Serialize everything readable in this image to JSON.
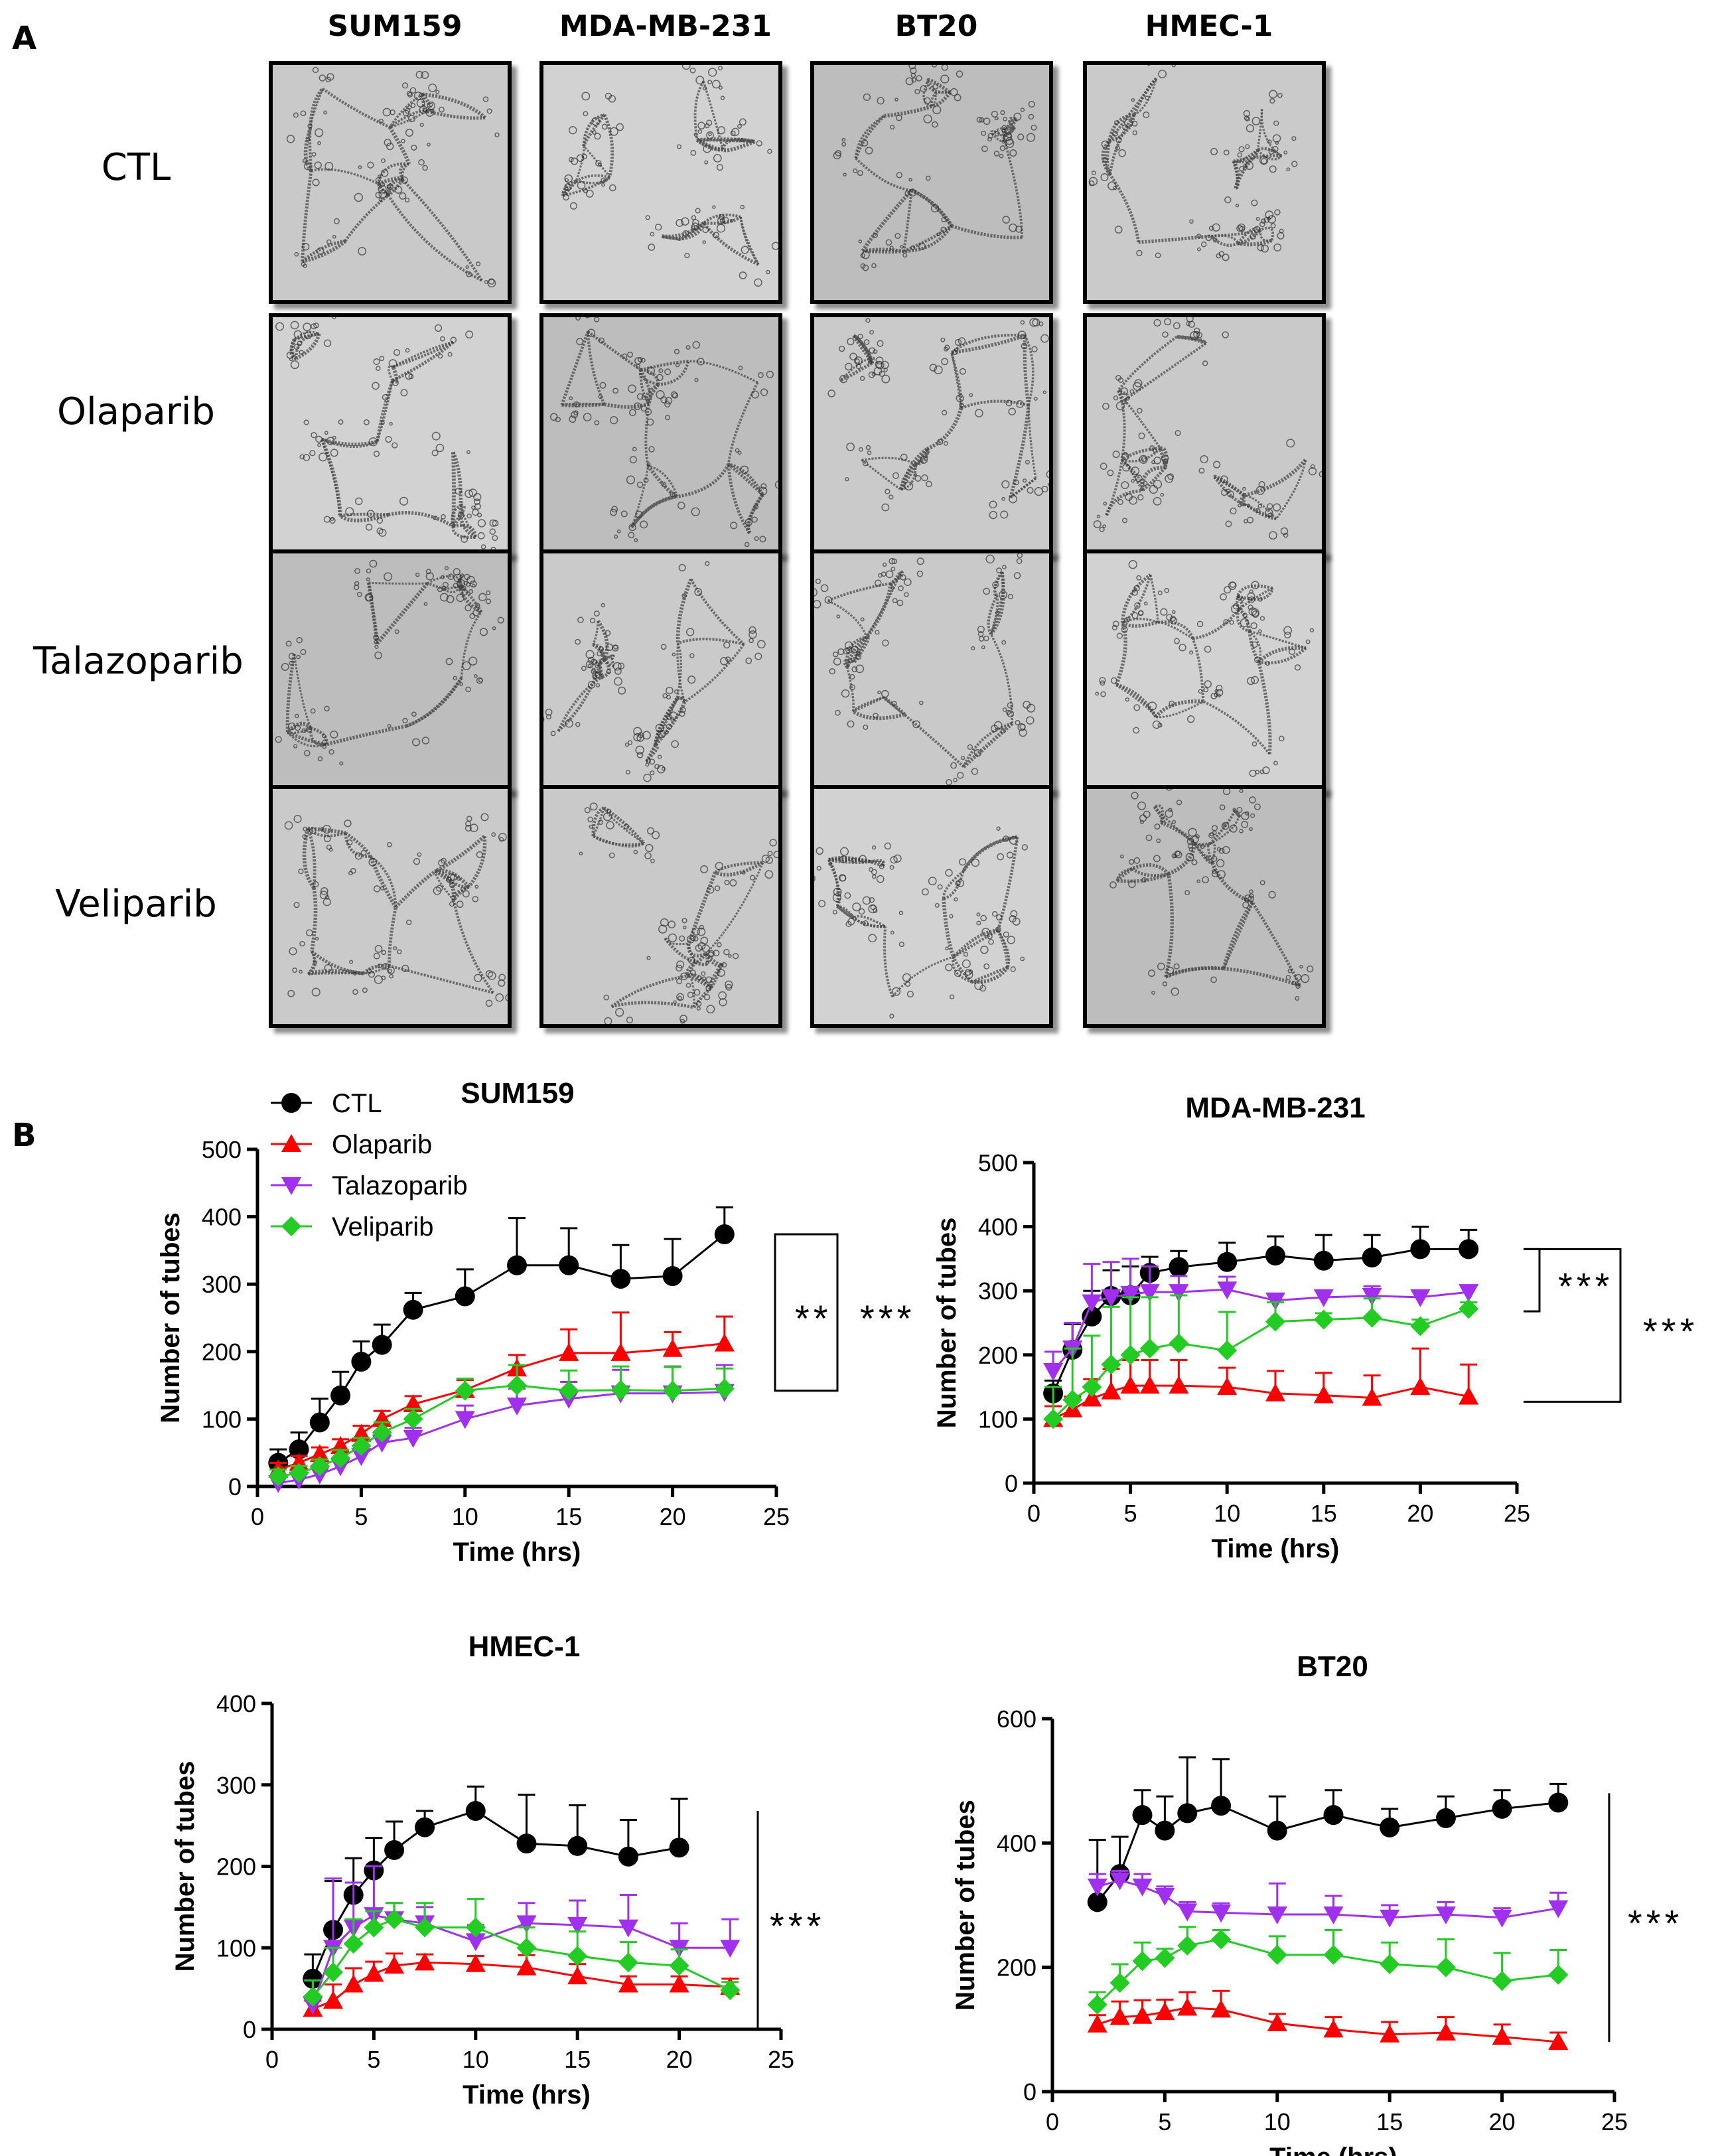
{
  "figure": {
    "panel_a_label": "A",
    "panel_b_label": "B",
    "micrograph_columns": [
      "SUM159",
      "MDA-MB-231",
      "BT20",
      "HMEC-1"
    ],
    "micrograph_rows": [
      "CTL",
      "Olaparib",
      "Talazoparib",
      "Veliparib"
    ],
    "colors": {
      "CTL": "#000000",
      "Olaparib": "#ff0000",
      "Talazoparib": "#a030ee",
      "Veliparib": "#22cc22"
    }
  },
  "chart_data": [
    {
      "type": "line",
      "title": "SUM159",
      "xlabel": "Time (hrs)",
      "ylabel": "Number of tubes",
      "xlim": [
        0,
        25
      ],
      "ylim": [
        0,
        500
      ],
      "xticks": [
        0,
        5,
        10,
        15,
        20,
        25
      ],
      "yticks": [
        0,
        100,
        200,
        300,
        400,
        500
      ],
      "legend": {
        "position": "top-left",
        "entries": [
          "CTL",
          "Olaparib",
          "Talazoparib",
          "Veliparib"
        ]
      },
      "annotations": [
        {
          "text": "**",
          "from_series": "CTL",
          "to_series": "Veliparib"
        },
        {
          "text": "***",
          "from_series": "CTL",
          "to_series": "Talazoparib"
        }
      ],
      "x": [
        1,
        2,
        3,
        4,
        5,
        6,
        7.5,
        10,
        12.5,
        15,
        17.5,
        20,
        22.5
      ],
      "series": [
        {
          "name": "CTL",
          "marker": "circle",
          "values": [
            35,
            55,
            95,
            135,
            185,
            210,
            262,
            282,
            328,
            328,
            308,
            312,
            374
          ],
          "errors": [
            20,
            25,
            35,
            35,
            30,
            30,
            25,
            40,
            70,
            55,
            50,
            55,
            40
          ]
        },
        {
          "name": "Olaparib",
          "marker": "triangle-up",
          "values": [
            25,
            35,
            48,
            60,
            78,
            100,
            122,
            143,
            175,
            198,
            198,
            204,
            212
          ],
          "errors": [
            10,
            10,
            10,
            10,
            12,
            12,
            12,
            15,
            20,
            35,
            60,
            25,
            40
          ]
        },
        {
          "name": "Talazoparib",
          "marker": "triangle-down",
          "values": [
            5,
            10,
            18,
            30,
            45,
            65,
            72,
            100,
            120,
            130,
            138,
            138,
            140
          ],
          "errors": [
            10,
            10,
            10,
            10,
            10,
            12,
            15,
            20,
            25,
            25,
            35,
            40,
            40
          ]
        },
        {
          "name": "Veliparib",
          "marker": "diamond",
          "values": [
            15,
            20,
            30,
            42,
            60,
            80,
            100,
            142,
            150,
            142,
            143,
            142,
            145
          ],
          "errors": [
            10,
            10,
            10,
            12,
            12,
            15,
            15,
            18,
            30,
            30,
            35,
            35,
            30
          ]
        }
      ]
    },
    {
      "type": "line",
      "title": "MDA-MB-231",
      "xlabel": "Time (hrs)",
      "ylabel": "Number of tubes",
      "xlim": [
        0,
        25
      ],
      "ylim": [
        0,
        500
      ],
      "xticks": [
        0,
        5,
        10,
        15,
        20,
        25
      ],
      "yticks": [
        0,
        100,
        200,
        300,
        400,
        500
      ],
      "annotations": [
        {
          "text": "***",
          "from_series": "CTL",
          "to_series": "Talazoparib"
        },
        {
          "text": "***",
          "from_series": "CTL",
          "to_series": "Olaparib"
        }
      ],
      "x": [
        1,
        2,
        3,
        4,
        5,
        6,
        7.5,
        10,
        12.5,
        15,
        17.5,
        20,
        22.5
      ],
      "series": [
        {
          "name": "CTL",
          "marker": "circle",
          "values": [
            140,
            208,
            260,
            292,
            293,
            328,
            337,
            345,
            355,
            347,
            352,
            365,
            365
          ],
          "errors": [
            20,
            40,
            40,
            40,
            45,
            25,
            25,
            30,
            30,
            40,
            35,
            35,
            30
          ]
        },
        {
          "name": "Olaparib",
          "marker": "triangle-up",
          "values": [
            100,
            115,
            132,
            143,
            152,
            152,
            152,
            150,
            140,
            137,
            133,
            150,
            135
          ],
          "errors": [
            20,
            20,
            30,
            35,
            40,
            40,
            40,
            30,
            35,
            35,
            35,
            60,
            50
          ]
        },
        {
          "name": "Talazoparib",
          "marker": "triangle-down",
          "values": [
            175,
            210,
            282,
            290,
            295,
            298,
            298,
            302,
            285,
            290,
            292,
            290,
            298
          ],
          "errors": [
            30,
            40,
            60,
            55,
            55,
            40,
            25,
            20,
            10,
            10,
            15,
            10,
            10
          ]
        },
        {
          "name": "Veliparib",
          "marker": "diamond",
          "values": [
            100,
            130,
            150,
            185,
            200,
            210,
            218,
            207,
            252,
            255,
            258,
            245,
            272
          ],
          "errors": [
            50,
            80,
            80,
            90,
            90,
            80,
            75,
            60,
            30,
            10,
            30,
            10,
            10
          ]
        }
      ]
    },
    {
      "type": "line",
      "title": "HMEC-1",
      "xlabel": "Time (hrs)",
      "ylabel": "Number of tubes",
      "xlim": [
        0,
        25
      ],
      "ylim": [
        0,
        400
      ],
      "xticks": [
        0,
        5,
        10,
        15,
        20,
        25
      ],
      "yticks": [
        0,
        100,
        200,
        300,
        400
      ],
      "annotations": [
        {
          "text": "***",
          "from_series": "CTL",
          "to_series": "Olaparib"
        }
      ],
      "x": [
        2,
        3,
        4,
        5,
        6,
        7.5,
        10,
        12.5,
        15,
        17.5,
        20,
        22.5
      ],
      "series": [
        {
          "name": "CTL",
          "marker": "circle",
          "values": [
            62,
            122,
            165,
            195,
            220,
            248,
            268,
            228,
            225,
            212,
            223,
            null
          ],
          "errors": [
            30,
            60,
            45,
            40,
            35,
            20,
            30,
            60,
            50,
            45,
            60,
            null
          ]
        },
        {
          "name": "Olaparib",
          "marker": "triangle-up",
          "values": [
            25,
            35,
            55,
            68,
            78,
            82,
            80,
            76,
            65,
            55,
            55,
            52
          ],
          "errors": [
            10,
            20,
            20,
            15,
            15,
            10,
            10,
            15,
            15,
            10,
            10,
            10
          ]
        },
        {
          "name": "Talazoparib",
          "marker": "triangle-down",
          "values": [
            30,
            100,
            125,
            140,
            135,
            130,
            108,
            130,
            128,
            125,
            100,
            100
          ],
          "errors": [
            30,
            85,
            55,
            60,
            20,
            20,
            20,
            25,
            30,
            40,
            30,
            35
          ]
        },
        {
          "name": "Veliparib",
          "marker": "diamond",
          "values": [
            40,
            70,
            105,
            125,
            135,
            125,
            125,
            100,
            90,
            82,
            78,
            48
          ],
          "errors": [
            20,
            30,
            30,
            20,
            20,
            30,
            35,
            25,
            30,
            25,
            20,
            10
          ]
        }
      ]
    },
    {
      "type": "line",
      "title": "BT20",
      "xlabel": "Time (hrs)",
      "ylabel": "Number of tubes",
      "xlim": [
        0,
        25
      ],
      "ylim": [
        0,
        600
      ],
      "xticks": [
        0,
        5,
        10,
        15,
        20,
        25
      ],
      "yticks": [
        0,
        200,
        400,
        600
      ],
      "annotations": [
        {
          "text": "***",
          "from_series": "CTL",
          "to_series": "Olaparib"
        }
      ],
      "x": [
        2,
        3,
        4,
        5,
        6,
        7.5,
        10,
        12.5,
        15,
        17.5,
        20,
        22.5
      ],
      "series": [
        {
          "name": "CTL",
          "marker": "circle",
          "values": [
            305,
            350,
            445,
            420,
            448,
            460,
            420,
            445,
            425,
            440,
            455,
            465
          ],
          "errors": [
            100,
            60,
            40,
            55,
            90,
            75,
            55,
            40,
            30,
            35,
            30,
            30
          ]
        },
        {
          "name": "Olaparib",
          "marker": "triangle-up",
          "values": [
            108,
            120,
            122,
            128,
            135,
            132,
            110,
            100,
            92,
            95,
            88,
            80
          ],
          "errors": [
            15,
            25,
            25,
            20,
            25,
            30,
            15,
            20,
            20,
            25,
            20,
            15
          ]
        },
        {
          "name": "Talazoparib",
          "marker": "triangle-down",
          "values": [
            330,
            340,
            330,
            315,
            290,
            288,
            285,
            285,
            280,
            285,
            280,
            295
          ],
          "errors": [
            20,
            15,
            20,
            15,
            15,
            15,
            50,
            30,
            20,
            20,
            15,
            25
          ]
        },
        {
          "name": "Veliparib",
          "marker": "diamond",
          "values": [
            140,
            175,
            210,
            215,
            235,
            245,
            220,
            220,
            205,
            200,
            178,
            188
          ],
          "errors": [
            20,
            30,
            30,
            15,
            30,
            15,
            30,
            40,
            35,
            45,
            45,
            40
          ]
        }
      ]
    }
  ]
}
